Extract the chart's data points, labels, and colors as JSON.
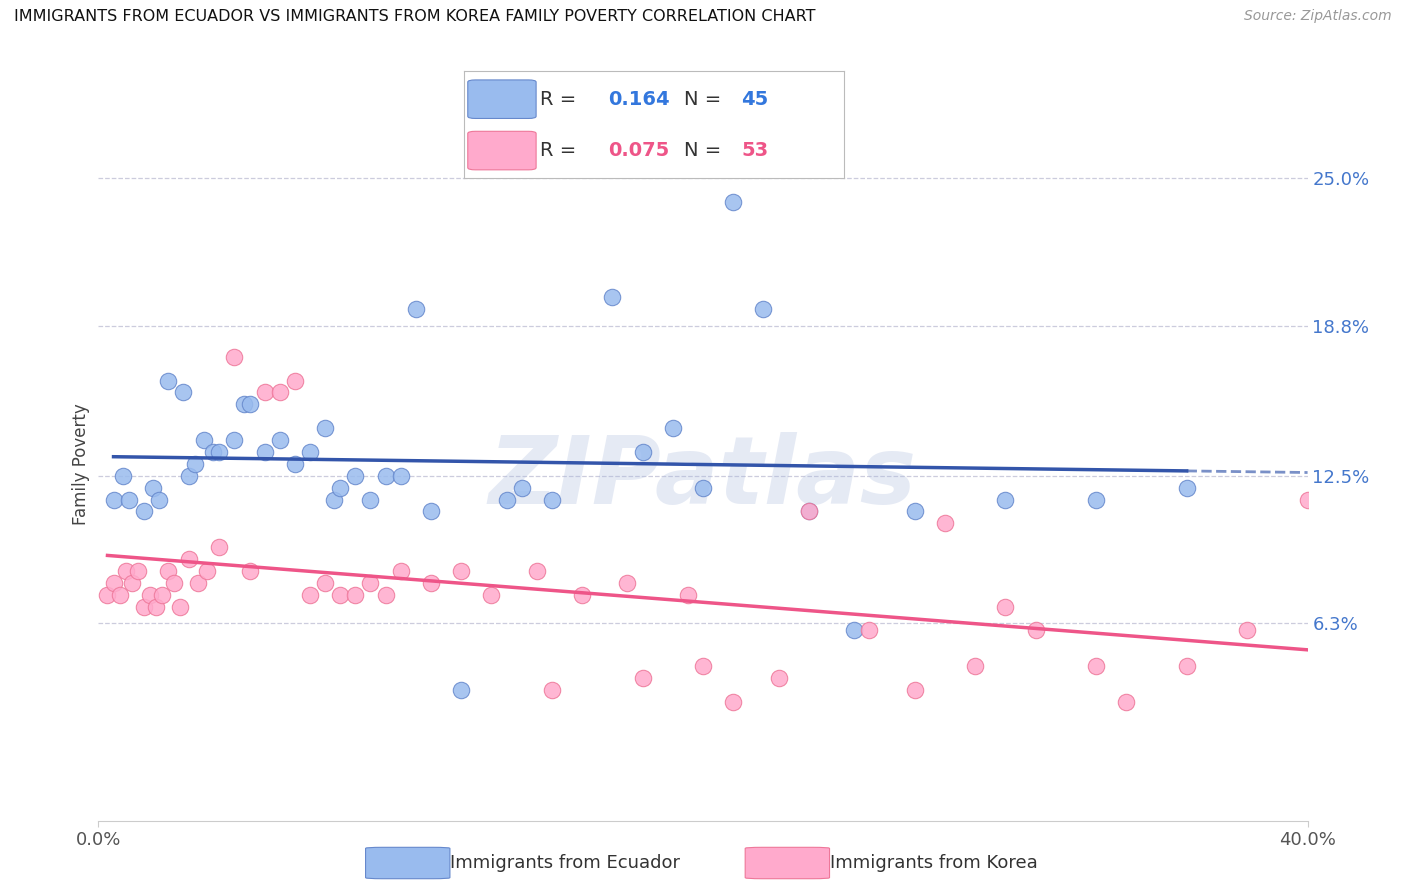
{
  "title": "IMMIGRANTS FROM ECUADOR VS IMMIGRANTS FROM KOREA FAMILY POVERTY CORRELATION CHART",
  "source": "Source: ZipAtlas.com",
  "ylabel": "Family Poverty",
  "y_ticks": [
    6.3,
    12.5,
    18.8,
    25.0
  ],
  "y_tick_labels": [
    "6.3%",
    "12.5%",
    "18.8%",
    "25.0%"
  ],
  "x_range": [
    0.0,
    40.0
  ],
  "y_range": [
    -2.0,
    28.0
  ],
  "ecuador_R": 0.164,
  "ecuador_N": 45,
  "korea_R": 0.075,
  "korea_N": 53,
  "ecuador_color": "#99BBEE",
  "korea_color": "#FFAACC",
  "ecuador_edge_color": "#6688CC",
  "korea_edge_color": "#EE7799",
  "ecuador_line_color": "#3355AA",
  "korea_line_color": "#EE5588",
  "watermark": "ZIPatlas",
  "watermark_color": "#AABBDD",
  "ecuador_x": [
    0.5,
    0.8,
    1.0,
    1.5,
    1.8,
    2.0,
    2.3,
    2.8,
    3.0,
    3.2,
    3.5,
    3.8,
    4.0,
    4.5,
    4.8,
    5.0,
    5.5,
    6.0,
    6.5,
    7.0,
    7.5,
    7.8,
    8.0,
    8.5,
    9.0,
    9.5,
    10.0,
    10.5,
    11.0,
    12.0,
    13.5,
    14.0,
    15.0,
    17.0,
    18.0,
    19.0,
    20.0,
    21.0,
    22.0,
    23.5,
    25.0,
    27.0,
    30.0,
    33.0,
    36.0
  ],
  "ecuador_y": [
    11.5,
    12.5,
    11.5,
    11.0,
    12.0,
    11.5,
    16.5,
    16.0,
    12.5,
    13.0,
    14.0,
    13.5,
    13.5,
    14.0,
    15.5,
    15.5,
    13.5,
    14.0,
    13.0,
    13.5,
    14.5,
    11.5,
    12.0,
    12.5,
    11.5,
    12.5,
    12.5,
    19.5,
    11.0,
    3.5,
    11.5,
    12.0,
    11.5,
    20.0,
    13.5,
    14.5,
    12.0,
    24.0,
    19.5,
    11.0,
    6.0,
    11.0,
    11.5,
    11.5,
    12.0
  ],
  "korea_x": [
    0.3,
    0.5,
    0.7,
    0.9,
    1.1,
    1.3,
    1.5,
    1.7,
    1.9,
    2.1,
    2.3,
    2.5,
    2.7,
    3.0,
    3.3,
    3.6,
    4.0,
    4.5,
    5.0,
    5.5,
    6.0,
    6.5,
    7.0,
    7.5,
    8.0,
    8.5,
    9.0,
    9.5,
    10.0,
    11.0,
    12.0,
    13.0,
    14.5,
    15.0,
    16.0,
    17.5,
    18.0,
    19.5,
    20.0,
    21.0,
    22.5,
    23.5,
    25.5,
    27.0,
    28.0,
    29.0,
    30.0,
    31.0,
    33.0,
    34.0,
    36.0,
    38.0,
    40.0
  ],
  "korea_y": [
    7.5,
    8.0,
    7.5,
    8.5,
    8.0,
    8.5,
    7.0,
    7.5,
    7.0,
    7.5,
    8.5,
    8.0,
    7.0,
    9.0,
    8.0,
    8.5,
    9.5,
    17.5,
    8.5,
    16.0,
    16.0,
    16.5,
    7.5,
    8.0,
    7.5,
    7.5,
    8.0,
    7.5,
    8.5,
    8.0,
    8.5,
    7.5,
    8.5,
    3.5,
    7.5,
    8.0,
    4.0,
    7.5,
    4.5,
    3.0,
    4.0,
    11.0,
    6.0,
    3.5,
    10.5,
    4.5,
    7.0,
    6.0,
    4.5,
    3.0,
    4.5,
    6.0,
    11.5
  ],
  "legend_border_color": "#AAAAAA",
  "tick_color": "#AAAAAA",
  "spine_color": "#CCCCCC"
}
